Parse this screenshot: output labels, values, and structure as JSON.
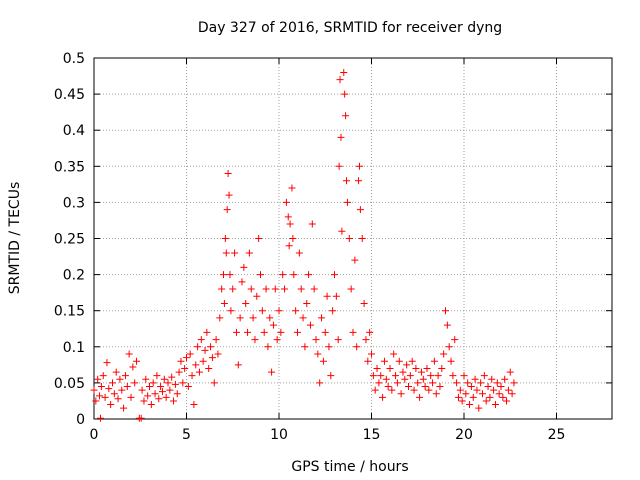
{
  "chart_data": {
    "type": "scatter",
    "title": "Day 327 of 2016, SRMTID for receiver dyng",
    "xlabel": "GPS time / hours",
    "ylabel": "SRMTID / TECUs",
    "xlim": [
      0,
      28
    ],
    "ylim": [
      0,
      0.5
    ],
    "x_ticks": [
      0,
      5,
      10,
      15,
      20,
      25
    ],
    "x_tick_labels": [
      "0",
      "5",
      "10",
      "15",
      "20",
      "25"
    ],
    "y_ticks": [
      0,
      0.05,
      0.1,
      0.15,
      0.2,
      0.25,
      0.3,
      0.35,
      0.4,
      0.45,
      0.5
    ],
    "y_tick_labels": [
      "0",
      "0.05",
      "0.1",
      "0.15",
      "0.2",
      "0.25",
      "0.3",
      "0.35",
      "0.4",
      "0.45",
      "0.5"
    ],
    "grid": true,
    "marker": "+",
    "color": "#ff0000",
    "series": [
      {
        "name": "SRMTID",
        "points": [
          [
            0.0,
            0.04
          ],
          [
            0.1,
            0.025
          ],
          [
            0.2,
            0.055
          ],
          [
            0.3,
            0.032
          ],
          [
            0.35,
            0.001
          ],
          [
            0.4,
            0.045
          ],
          [
            0.5,
            0.06
          ],
          [
            0.6,
            0.03
          ],
          [
            0.7,
            0.078
          ],
          [
            0.8,
            0.042
          ],
          [
            0.9,
            0.02
          ],
          [
            1.0,
            0.05
          ],
          [
            1.1,
            0.035
          ],
          [
            1.2,
            0.065
          ],
          [
            1.3,
            0.028
          ],
          [
            1.4,
            0.055
          ],
          [
            1.5,
            0.04
          ],
          [
            1.6,
            0.015
          ],
          [
            1.7,
            0.06
          ],
          [
            1.8,
            0.045
          ],
          [
            1.9,
            0.09
          ],
          [
            2.0,
            0.03
          ],
          [
            2.1,
            0.072
          ],
          [
            2.2,
            0.05
          ],
          [
            2.3,
            0.08
          ],
          [
            2.45,
            0.001
          ],
          [
            2.55,
            0.001
          ],
          [
            2.6,
            0.04
          ],
          [
            2.7,
            0.025
          ],
          [
            2.8,
            0.055
          ],
          [
            2.9,
            0.032
          ],
          [
            3.0,
            0.045
          ],
          [
            3.1,
            0.02
          ],
          [
            3.2,
            0.05
          ],
          [
            3.3,
            0.035
          ],
          [
            3.4,
            0.06
          ],
          [
            3.5,
            0.028
          ],
          [
            3.6,
            0.045
          ],
          [
            3.7,
            0.038
          ],
          [
            3.8,
            0.055
          ],
          [
            3.9,
            0.03
          ],
          [
            4.0,
            0.05
          ],
          [
            4.1,
            0.04
          ],
          [
            4.2,
            0.058
          ],
          [
            4.3,
            0.025
          ],
          [
            4.4,
            0.048
          ],
          [
            4.5,
            0.035
          ],
          [
            4.6,
            0.065
          ],
          [
            4.7,
            0.08
          ],
          [
            4.8,
            0.05
          ],
          [
            4.9,
            0.07
          ],
          [
            5.0,
            0.085
          ],
          [
            5.1,
            0.045
          ],
          [
            5.2,
            0.09
          ],
          [
            5.3,
            0.06
          ],
          [
            5.4,
            0.02
          ],
          [
            5.5,
            0.075
          ],
          [
            5.6,
            0.1
          ],
          [
            5.7,
            0.065
          ],
          [
            5.8,
            0.11
          ],
          [
            5.9,
            0.08
          ],
          [
            6.0,
            0.095
          ],
          [
            6.1,
            0.12
          ],
          [
            6.2,
            0.07
          ],
          [
            6.3,
            0.1
          ],
          [
            6.4,
            0.085
          ],
          [
            6.5,
            0.05
          ],
          [
            6.6,
            0.11
          ],
          [
            6.7,
            0.09
          ],
          [
            6.8,
            0.14
          ],
          [
            6.9,
            0.18
          ],
          [
            7.0,
            0.2
          ],
          [
            7.05,
            0.16
          ],
          [
            7.1,
            0.25
          ],
          [
            7.15,
            0.23
          ],
          [
            7.2,
            0.29
          ],
          [
            7.25,
            0.34
          ],
          [
            7.3,
            0.31
          ],
          [
            7.35,
            0.2
          ],
          [
            7.4,
            0.15
          ],
          [
            7.5,
            0.18
          ],
          [
            7.6,
            0.23
          ],
          [
            7.7,
            0.12
          ],
          [
            7.8,
            0.075
          ],
          [
            7.9,
            0.14
          ],
          [
            8.0,
            0.19
          ],
          [
            8.1,
            0.21
          ],
          [
            8.2,
            0.16
          ],
          [
            8.3,
            0.12
          ],
          [
            8.4,
            0.23
          ],
          [
            8.5,
            0.18
          ],
          [
            8.6,
            0.14
          ],
          [
            8.7,
            0.11
          ],
          [
            8.8,
            0.17
          ],
          [
            8.9,
            0.25
          ],
          [
            9.0,
            0.2
          ],
          [
            9.1,
            0.15
          ],
          [
            9.2,
            0.12
          ],
          [
            9.3,
            0.18
          ],
          [
            9.4,
            0.1
          ],
          [
            9.5,
            0.14
          ],
          [
            9.6,
            0.065
          ],
          [
            9.7,
            0.13
          ],
          [
            9.8,
            0.18
          ],
          [
            9.9,
            0.11
          ],
          [
            10.0,
            0.15
          ],
          [
            10.1,
            0.12
          ],
          [
            10.2,
            0.2
          ],
          [
            10.3,
            0.18
          ],
          [
            10.4,
            0.3
          ],
          [
            10.5,
            0.28
          ],
          [
            10.55,
            0.24
          ],
          [
            10.6,
            0.27
          ],
          [
            10.7,
            0.32
          ],
          [
            10.75,
            0.25
          ],
          [
            10.8,
            0.2
          ],
          [
            10.9,
            0.15
          ],
          [
            11.0,
            0.12
          ],
          [
            11.1,
            0.23
          ],
          [
            11.2,
            0.18
          ],
          [
            11.3,
            0.14
          ],
          [
            11.4,
            0.1
          ],
          [
            11.5,
            0.16
          ],
          [
            11.6,
            0.2
          ],
          [
            11.7,
            0.13
          ],
          [
            11.8,
            0.27
          ],
          [
            11.9,
            0.18
          ],
          [
            12.0,
            0.11
          ],
          [
            12.1,
            0.09
          ],
          [
            12.2,
            0.05
          ],
          [
            12.3,
            0.14
          ],
          [
            12.4,
            0.08
          ],
          [
            12.5,
            0.12
          ],
          [
            12.6,
            0.17
          ],
          [
            12.7,
            0.1
          ],
          [
            12.8,
            0.06
          ],
          [
            12.9,
            0.15
          ],
          [
            13.0,
            0.2
          ],
          [
            13.1,
            0.17
          ],
          [
            13.2,
            0.11
          ],
          [
            13.25,
            0.35
          ],
          [
            13.3,
            0.47
          ],
          [
            13.35,
            0.39
          ],
          [
            13.4,
            0.26
          ],
          [
            13.5,
            0.48
          ],
          [
            13.55,
            0.45
          ],
          [
            13.6,
            0.42
          ],
          [
            13.65,
            0.33
          ],
          [
            13.7,
            0.3
          ],
          [
            13.8,
            0.25
          ],
          [
            13.9,
            0.18
          ],
          [
            14.0,
            0.12
          ],
          [
            14.1,
            0.22
          ],
          [
            14.2,
            0.1
          ],
          [
            14.3,
            0.33
          ],
          [
            14.35,
            0.35
          ],
          [
            14.4,
            0.29
          ],
          [
            14.5,
            0.25
          ],
          [
            14.6,
            0.16
          ],
          [
            14.7,
            0.11
          ],
          [
            14.8,
            0.08
          ],
          [
            14.9,
            0.12
          ],
          [
            15.0,
            0.09
          ],
          [
            15.1,
            0.06
          ],
          [
            15.2,
            0.04
          ],
          [
            15.3,
            0.07
          ],
          [
            15.4,
            0.05
          ],
          [
            15.5,
            0.06
          ],
          [
            15.6,
            0.03
          ],
          [
            15.7,
            0.08
          ],
          [
            15.8,
            0.055
          ],
          [
            15.9,
            0.045
          ],
          [
            16.0,
            0.07
          ],
          [
            16.1,
            0.04
          ],
          [
            16.2,
            0.09
          ],
          [
            16.3,
            0.06
          ],
          [
            16.4,
            0.05
          ],
          [
            16.5,
            0.08
          ],
          [
            16.6,
            0.035
          ],
          [
            16.7,
            0.065
          ],
          [
            16.8,
            0.055
          ],
          [
            16.9,
            0.075
          ],
          [
            17.0,
            0.045
          ],
          [
            17.1,
            0.06
          ],
          [
            17.2,
            0.08
          ],
          [
            17.3,
            0.04
          ],
          [
            17.4,
            0.07
          ],
          [
            17.5,
            0.05
          ],
          [
            17.6,
            0.03
          ],
          [
            17.7,
            0.065
          ],
          [
            17.8,
            0.055
          ],
          [
            17.9,
            0.045
          ],
          [
            18.0,
            0.07
          ],
          [
            18.1,
            0.04
          ],
          [
            18.2,
            0.06
          ],
          [
            18.3,
            0.05
          ],
          [
            18.4,
            0.08
          ],
          [
            18.5,
            0.035
          ],
          [
            18.6,
            0.06
          ],
          [
            18.7,
            0.045
          ],
          [
            18.8,
            0.07
          ],
          [
            18.9,
            0.09
          ],
          [
            19.0,
            0.15
          ],
          [
            19.1,
            0.13
          ],
          [
            19.2,
            0.1
          ],
          [
            19.3,
            0.08
          ],
          [
            19.4,
            0.06
          ],
          [
            19.5,
            0.11
          ],
          [
            19.6,
            0.05
          ],
          [
            19.7,
            0.03
          ],
          [
            19.8,
            0.04
          ],
          [
            19.9,
            0.025
          ],
          [
            20.0,
            0.06
          ],
          [
            20.1,
            0.035
          ],
          [
            20.2,
            0.05
          ],
          [
            20.3,
            0.02
          ],
          [
            20.4,
            0.045
          ],
          [
            20.5,
            0.03
          ],
          [
            20.6,
            0.055
          ],
          [
            20.7,
            0.04
          ],
          [
            20.8,
            0.015
          ],
          [
            20.9,
            0.05
          ],
          [
            21.0,
            0.035
          ],
          [
            21.1,
            0.06
          ],
          [
            21.2,
            0.025
          ],
          [
            21.3,
            0.045
          ],
          [
            21.4,
            0.03
          ],
          [
            21.5,
            0.055
          ],
          [
            21.6,
            0.04
          ],
          [
            21.7,
            0.02
          ],
          [
            21.8,
            0.05
          ],
          [
            21.9,
            0.035
          ],
          [
            22.0,
            0.045
          ],
          [
            22.1,
            0.03
          ],
          [
            22.2,
            0.055
          ],
          [
            22.3,
            0.025
          ],
          [
            22.4,
            0.04
          ],
          [
            22.5,
            0.065
          ],
          [
            22.6,
            0.035
          ],
          [
            22.7,
            0.05
          ]
        ]
      }
    ]
  }
}
